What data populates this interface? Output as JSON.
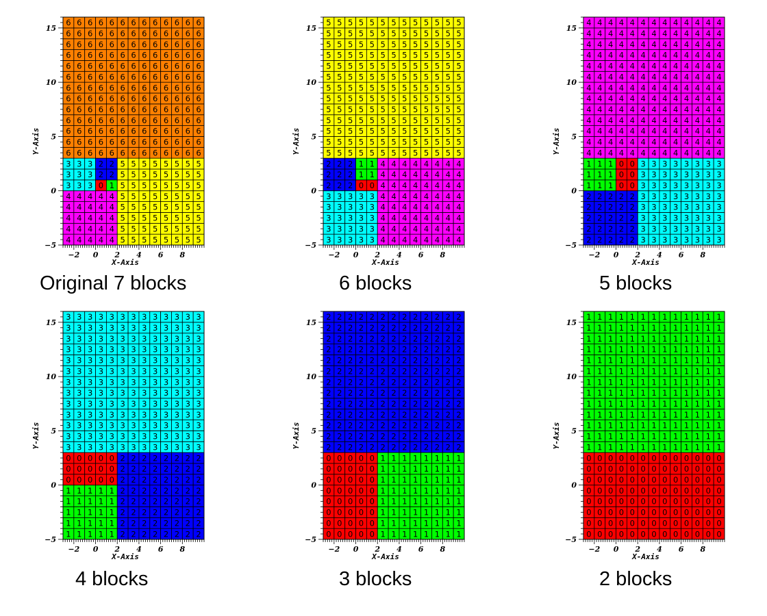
{
  "palette": {
    "0": "#ff0000",
    "1": "#00ff00",
    "2": "#0000ff",
    "3": "#00ffff",
    "4": "#ff00ff",
    "5": "#ffff00",
    "6": "#ff8000"
  },
  "chart_data": [
    {
      "type": "heatmap",
      "caption": "Original 7 blocks",
      "xlabel": "X-Axis",
      "ylabel": "Y-Axis",
      "xlim": [
        -3,
        10
      ],
      "ylim": [
        -5,
        16
      ],
      "xticks": [
        -2,
        0,
        2,
        4,
        6,
        8
      ],
      "yticks": [
        -5,
        0,
        5,
        10,
        15
      ],
      "xedges": [
        -3,
        -2,
        -1,
        0,
        1,
        2,
        3,
        4,
        5,
        6,
        7,
        8,
        9,
        10
      ],
      "yedges": [
        -5,
        -4,
        -3,
        -2,
        -1,
        0,
        1,
        2,
        3,
        4,
        5,
        6,
        7,
        8,
        9,
        10,
        11,
        12,
        13,
        14,
        15,
        16
      ],
      "blocks": [
        {
          "id": 6,
          "x": [
            -3,
            10
          ],
          "y": [
            3,
            16
          ]
        },
        {
          "id": 3,
          "x": [
            -3,
            0
          ],
          "y": [
            0,
            3
          ]
        },
        {
          "id": 2,
          "x": [
            0,
            2
          ],
          "y": [
            1,
            3
          ]
        },
        {
          "id": 0,
          "x": [
            0,
            1
          ],
          "y": [
            0,
            1
          ]
        },
        {
          "id": 1,
          "x": [
            1,
            2
          ],
          "y": [
            0,
            1
          ]
        },
        {
          "id": 5,
          "x": [
            2,
            10
          ],
          "y": [
            -5,
            3
          ]
        },
        {
          "id": 4,
          "x": [
            -3,
            2
          ],
          "y": [
            -5,
            0
          ]
        }
      ]
    },
    {
      "type": "heatmap",
      "caption": "6 blocks",
      "xlabel": "X-Axis",
      "ylabel": "Y-Axis",
      "xlim": [
        -3,
        10
      ],
      "ylim": [
        -5,
        16
      ],
      "xticks": [
        -2,
        0,
        2,
        4,
        6,
        8
      ],
      "yticks": [
        -5,
        0,
        5,
        10,
        15
      ],
      "xedges": [
        -3,
        -2,
        -1,
        0,
        1,
        2,
        3,
        4,
        5,
        6,
        7,
        8,
        9,
        10
      ],
      "yedges": [
        -5,
        -4,
        -3,
        -2,
        -1,
        0,
        1,
        2,
        3,
        4,
        5,
        6,
        7,
        8,
        9,
        10,
        11,
        12,
        13,
        14,
        15,
        16
      ],
      "blocks": [
        {
          "id": 5,
          "x": [
            -3,
            10
          ],
          "y": [
            3,
            16
          ]
        },
        {
          "id": 2,
          "x": [
            -3,
            0
          ],
          "y": [
            0,
            3
          ]
        },
        {
          "id": 1,
          "x": [
            0,
            2
          ],
          "y": [
            1,
            3
          ]
        },
        {
          "id": 0,
          "x": [
            0,
            2
          ],
          "y": [
            0,
            1
          ]
        },
        {
          "id": 4,
          "x": [
            2,
            10
          ],
          "y": [
            -5,
            3
          ]
        },
        {
          "id": 3,
          "x": [
            -3,
            2
          ],
          "y": [
            -5,
            0
          ]
        }
      ]
    },
    {
      "type": "heatmap",
      "caption": "5 blocks",
      "xlabel": "X-Axis",
      "ylabel": "Y-Axis",
      "xlim": [
        -3,
        10
      ],
      "ylim": [
        -5,
        16
      ],
      "xticks": [
        -2,
        0,
        2,
        4,
        6,
        8
      ],
      "yticks": [
        -5,
        0,
        5,
        10,
        15
      ],
      "xedges": [
        -3,
        -2,
        -1,
        0,
        1,
        2,
        3,
        4,
        5,
        6,
        7,
        8,
        9,
        10
      ],
      "yedges": [
        -5,
        -4,
        -3,
        -2,
        -1,
        0,
        1,
        2,
        3,
        4,
        5,
        6,
        7,
        8,
        9,
        10,
        11,
        12,
        13,
        14,
        15,
        16
      ],
      "blocks": [
        {
          "id": 4,
          "x": [
            -3,
            10
          ],
          "y": [
            3,
            16
          ]
        },
        {
          "id": 1,
          "x": [
            -3,
            0
          ],
          "y": [
            0,
            3
          ]
        },
        {
          "id": 0,
          "x": [
            0,
            2
          ],
          "y": [
            0,
            3
          ]
        },
        {
          "id": 3,
          "x": [
            2,
            10
          ],
          "y": [
            -5,
            3
          ]
        },
        {
          "id": 2,
          "x": [
            -3,
            2
          ],
          "y": [
            -5,
            0
          ]
        }
      ]
    },
    {
      "type": "heatmap",
      "caption": "4 blocks",
      "xlabel": "X-Axis",
      "ylabel": "Y-Axis",
      "xlim": [
        -3,
        10
      ],
      "ylim": [
        -5,
        16
      ],
      "xticks": [
        -2,
        0,
        2,
        4,
        6,
        8
      ],
      "yticks": [
        -5,
        0,
        5,
        10,
        15
      ],
      "xedges": [
        -3,
        -2,
        -1,
        0,
        1,
        2,
        3,
        4,
        5,
        6,
        7,
        8,
        9,
        10
      ],
      "yedges": [
        -5,
        -4,
        -3,
        -2,
        -1,
        0,
        1,
        2,
        3,
        4,
        5,
        6,
        7,
        8,
        9,
        10,
        11,
        12,
        13,
        14,
        15,
        16
      ],
      "blocks": [
        {
          "id": 3,
          "x": [
            -3,
            10
          ],
          "y": [
            3,
            16
          ]
        },
        {
          "id": 0,
          "x": [
            -3,
            2
          ],
          "y": [
            0,
            3
          ]
        },
        {
          "id": 1,
          "x": [
            -3,
            2
          ],
          "y": [
            -5,
            0
          ]
        },
        {
          "id": 2,
          "x": [
            2,
            10
          ],
          "y": [
            -5,
            3
          ]
        }
      ]
    },
    {
      "type": "heatmap",
      "caption": "3 blocks",
      "xlabel": "X-Axis",
      "ylabel": "Y-Axis",
      "xlim": [
        -3,
        10
      ],
      "ylim": [
        -5,
        16
      ],
      "xticks": [
        -2,
        0,
        2,
        4,
        6,
        8
      ],
      "yticks": [
        -5,
        0,
        5,
        10,
        15
      ],
      "xedges": [
        -3,
        -2,
        -1,
        0,
        1,
        2,
        3,
        4,
        5,
        6,
        7,
        8,
        9,
        10
      ],
      "yedges": [
        -5,
        -4,
        -3,
        -2,
        -1,
        0,
        1,
        2,
        3,
        4,
        5,
        6,
        7,
        8,
        9,
        10,
        11,
        12,
        13,
        14,
        15,
        16
      ],
      "blocks": [
        {
          "id": 2,
          "x": [
            -3,
            10
          ],
          "y": [
            3,
            16
          ]
        },
        {
          "id": 0,
          "x": [
            -3,
            2
          ],
          "y": [
            -5,
            3
          ]
        },
        {
          "id": 1,
          "x": [
            2,
            10
          ],
          "y": [
            -5,
            3
          ]
        }
      ]
    },
    {
      "type": "heatmap",
      "caption": "2 blocks",
      "xlabel": "X-Axis",
      "ylabel": "Y-Axis",
      "xlim": [
        -3,
        10
      ],
      "ylim": [
        -5,
        16
      ],
      "xticks": [
        -2,
        0,
        2,
        4,
        6,
        8
      ],
      "yticks": [
        -5,
        0,
        5,
        10,
        15
      ],
      "xedges": [
        -3,
        -2,
        -1,
        0,
        1,
        2,
        3,
        4,
        5,
        6,
        7,
        8,
        9,
        10
      ],
      "yedges": [
        -5,
        -4,
        -3,
        -2,
        -1,
        0,
        1,
        2,
        3,
        4,
        5,
        6,
        7,
        8,
        9,
        10,
        11,
        12,
        13,
        14,
        15,
        16
      ],
      "blocks": [
        {
          "id": 1,
          "x": [
            -3,
            10
          ],
          "y": [
            3,
            16
          ]
        },
        {
          "id": 0,
          "x": [
            -3,
            10
          ],
          "y": [
            -5,
            3
          ]
        }
      ]
    }
  ]
}
